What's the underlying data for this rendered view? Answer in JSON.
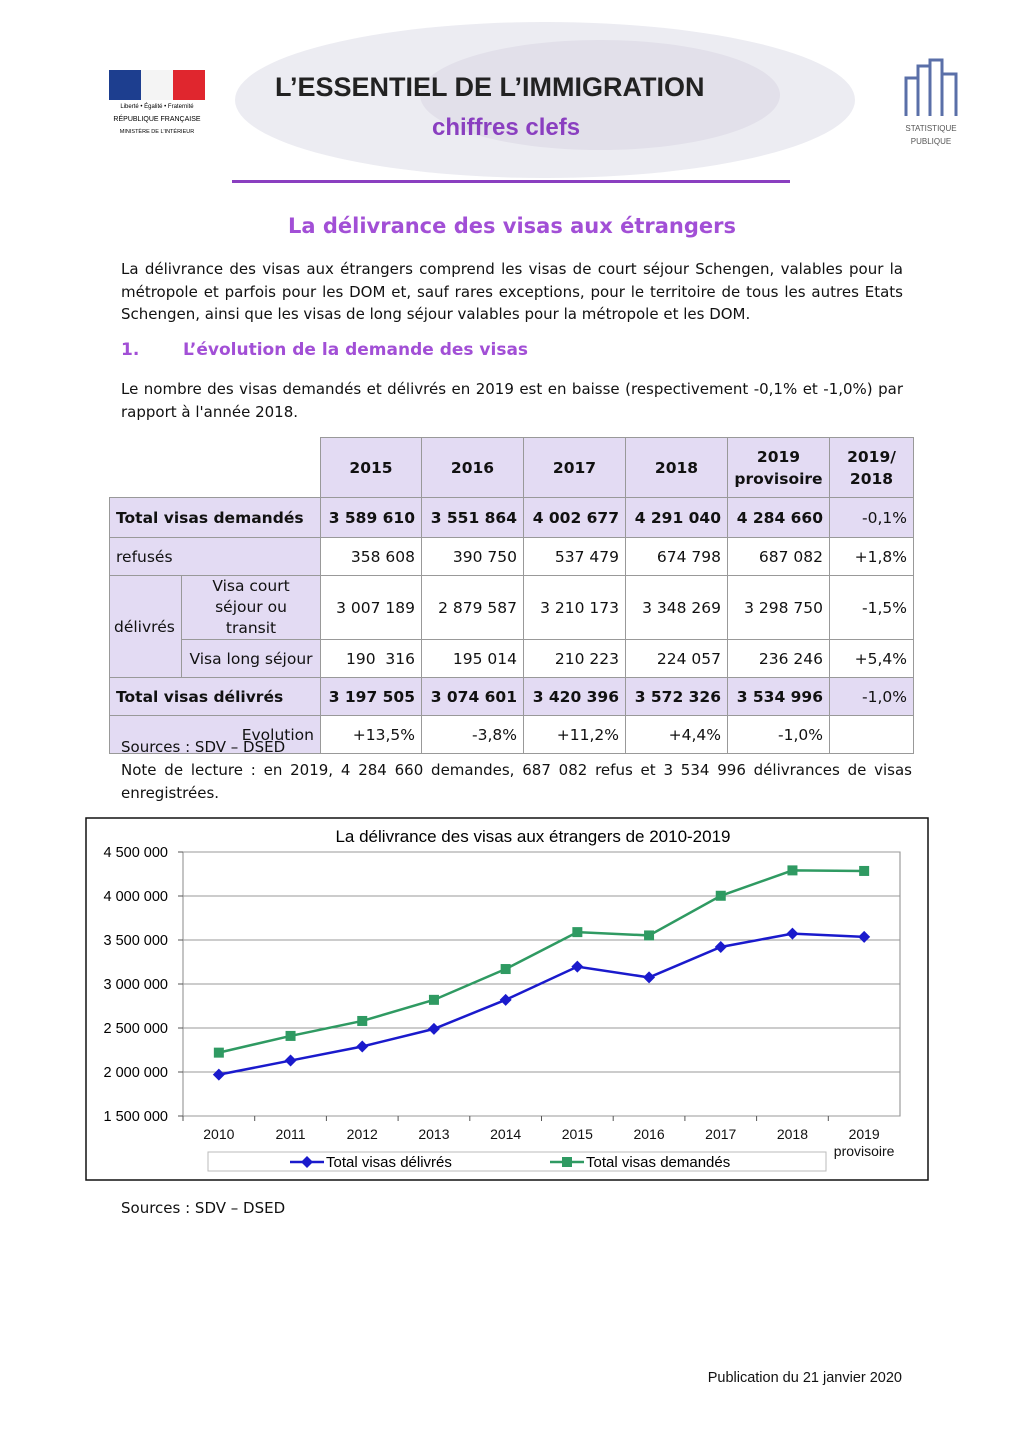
{
  "header": {
    "logo_left": [
      "Liberté • Égalité • Fraternité",
      "RÉPUBLIQUE FRANÇAISE",
      "MINISTÈRE DE L'INTÉRIEUR"
    ],
    "title": "L’ESSENTIEL DE L’IMMIGRATION",
    "subtitle": "chiffres clefs",
    "logo_right": [
      "STATISTIQUE",
      "PUBLIQUE"
    ]
  },
  "title": "La délivrance des visas aux étrangers",
  "intro": "La délivrance des visas aux étrangers comprend les visas de court séjour Schengen, valables pour la métropole et parfois pour les DOM et, sauf rares exceptions, pour le territoire de tous les autres Etats Schengen, ainsi que les visas de long séjour valables pour la métropole et les DOM.",
  "section": {
    "number": "1.",
    "heading": "L’évolution de la demande des visas"
  },
  "paragraph": "Le nombre des visas demandés et délivrés en 2019 est en baisse (respectivement -0,1% et -1,0%) par rapport à l'année 2018.",
  "table": {
    "header": [
      "2015",
      "2016",
      "2017",
      "2018",
      "2019 provisoire",
      "2019/ 2018"
    ],
    "rows": [
      {
        "label": "Total visas demandés",
        "values": [
          "3 589 610",
          "3 551 864",
          "4 002 677",
          "4 291 040",
          "4 284 660",
          "-0,1%"
        ]
      },
      {
        "label": "refusés",
        "values": [
          "358 608",
          "390 750",
          "537 479",
          "674 798",
          "687 082",
          "+1,8%"
        ]
      },
      {
        "group": "délivrés",
        "label": "Visa court séjour ou transit",
        "values": [
          "3 007 189",
          "2 879 587",
          "3 210 173",
          "3 348 269",
          "3 298 750",
          "-1,5%"
        ]
      },
      {
        "label": "Visa long séjour",
        "values": [
          "190  316",
          "195 014",
          "210 223",
          "224 057",
          "236 246",
          "+5,4%"
        ]
      },
      {
        "label": "Total visas délivrés",
        "values": [
          "3 197 505",
          "3 074 601",
          "3 420 396",
          "3 572 326",
          "3 534 996",
          "-1,0%"
        ]
      },
      {
        "label": "Evolution",
        "values": [
          "+13,5%",
          "-3,8%",
          "+11,2%",
          "+4,4%",
          "-1,0%"
        ]
      }
    ]
  },
  "sources": "Sources : SDV – DSED",
  "note": "Note de lecture : en 2019, 4 284 660 demandes, 687 082 refus et 3 534 996 délivrances de visas enregistrées.",
  "chart_data": {
    "type": "line",
    "title": "La délivrance des visas aux étrangers de 2010-2019",
    "categories": [
      "2010",
      "2011",
      "2012",
      "2013",
      "2014",
      "2015",
      "2016",
      "2017",
      "2018",
      "2019 provisoire"
    ],
    "series": [
      {
        "name": "Total visas délivrés",
        "color": "#1a1acc",
        "marker": "diamond",
        "values": [
          1970000,
          2130000,
          2290000,
          2490000,
          2820000,
          3197505,
          3074601,
          3420396,
          3572326,
          3534996
        ]
      },
      {
        "name": "Total visas demandés",
        "color": "#2f9a62",
        "marker": "square",
        "values": [
          2220000,
          2410000,
          2580000,
          2820000,
          3170000,
          3589610,
          3551864,
          4002677,
          4291040,
          4284660
        ]
      }
    ],
    "ylim": [
      1500000,
      4500000
    ],
    "yticks": [
      {
        "value": 1500000,
        "label": "1 500 000"
      },
      {
        "value": 2000000,
        "label": "2 000 000"
      },
      {
        "value": 2500000,
        "label": "2 500 000"
      },
      {
        "value": 3000000,
        "label": "3 000 000"
      },
      {
        "value": 3500000,
        "label": "3 500 000"
      },
      {
        "value": 4000000,
        "label": "4 000 000"
      },
      {
        "value": 4500000,
        "label": "4 500 000"
      }
    ],
    "grid": true,
    "legend": "bottom"
  },
  "chart_sources": "Sources : SDV – DSED",
  "footer": "Publication du 21 janvier 2020"
}
